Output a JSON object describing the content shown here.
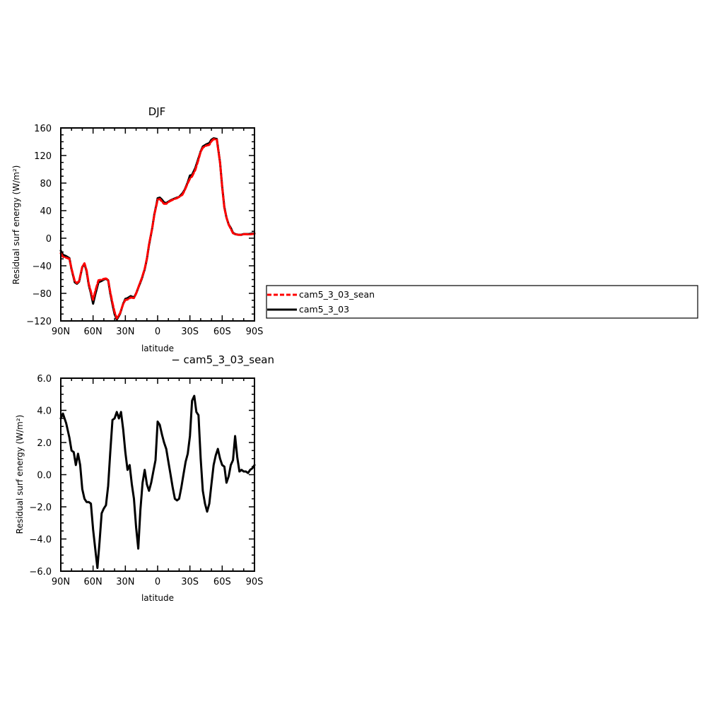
{
  "chart_data": [
    {
      "type": "line",
      "title": "DJF",
      "xlabel": "latitude",
      "ylabel": "Residual surf energy (W/m²)",
      "xlim": [
        90,
        -90
      ],
      "ylim": [
        -120,
        160
      ],
      "xticks": [
        90,
        60,
        30,
        0,
        -30,
        -60,
        -90
      ],
      "xtick_labels": [
        "90N",
        "60N",
        "30N",
        "0",
        "30S",
        "60S",
        "90S"
      ],
      "yticks": [
        -120,
        -80,
        -40,
        0,
        40,
        80,
        120,
        160
      ],
      "ytick_labels": [
        "−120",
        "−80",
        "−40",
        "0",
        "40",
        "80",
        "120",
        "160"
      ],
      "grid": false,
      "series": [
        {
          "name": "cam5_3_03",
          "color": "#000000",
          "dash": "solid",
          "x": [
            90,
            88,
            85,
            82,
            80,
            77,
            75,
            73,
            70,
            68,
            66,
            64,
            62,
            60,
            58,
            55,
            52,
            50,
            48,
            46,
            44,
            42,
            40,
            38,
            35,
            32,
            30,
            28,
            25,
            22,
            20,
            17,
            15,
            12,
            10,
            8,
            5,
            3,
            1,
            0,
            -2,
            -4,
            -6,
            -8,
            -10,
            -12,
            -15,
            -18,
            -20,
            -23,
            -25,
            -28,
            -30,
            -32,
            -35,
            -38,
            -40,
            -42,
            -45,
            -48,
            -50,
            -52,
            -55,
            -58,
            -60,
            -62,
            -64,
            -66,
            -68,
            -70,
            -72,
            -75,
            -78,
            -80,
            -82,
            -85,
            -88,
            -90
          ],
          "y": [
            -18,
            -24,
            -26,
            -29,
            -45,
            -64,
            -66,
            -63,
            -42,
            -37,
            -48,
            -68,
            -80,
            -95,
            -82,
            -64,
            -62,
            -60,
            -59,
            -61,
            -80,
            -96,
            -110,
            -118,
            -110,
            -95,
            -88,
            -87,
            -84,
            -86,
            -80,
            -68,
            -60,
            -45,
            -30,
            -10,
            15,
            35,
            50,
            58,
            59,
            56,
            52,
            51,
            53,
            55,
            57,
            59,
            60,
            65,
            70,
            81,
            91,
            92,
            102,
            116,
            126,
            133,
            136,
            138,
            143,
            145,
            144,
            110,
            75,
            45,
            30,
            20,
            15,
            8,
            6,
            5,
            5,
            6,
            6,
            6,
            7,
            7
          ]
        },
        {
          "name": "cam5_3_03_sean",
          "color": "#ff0000",
          "dash": "dashed",
          "x": [
            90,
            88,
            85,
            82,
            80,
            77,
            75,
            73,
            70,
            68,
            66,
            64,
            62,
            60,
            58,
            55,
            52,
            50,
            48,
            46,
            44,
            42,
            40,
            38,
            35,
            32,
            30,
            28,
            25,
            22,
            20,
            17,
            15,
            12,
            10,
            8,
            5,
            3,
            1,
            0,
            -2,
            -4,
            -6,
            -8,
            -10,
            -12,
            -15,
            -18,
            -20,
            -23,
            -25,
            -28,
            -30,
            -32,
            -35,
            -38,
            -40,
            -42,
            -45,
            -48,
            -50,
            -52,
            -55,
            -58,
            -60,
            -62,
            -64,
            -66,
            -68,
            -70,
            -72,
            -75,
            -78,
            -80,
            -82,
            -85,
            -88,
            -90
          ],
          "y": [
            -21.8,
            -26.8,
            -28.2,
            -30,
            -44.2,
            -62.4,
            -65,
            -62.2,
            -41.4,
            -36.4,
            -46.6,
            -66.4,
            -77.6,
            -89.2,
            -76.8,
            -61,
            -60.3,
            -59,
            -58.5,
            -60.4,
            -78.2,
            -93.6,
            -107,
            -116.3,
            -109.2,
            -95.3,
            -89.6,
            -89,
            -86,
            -86.8,
            -80.2,
            -67.3,
            -59.1,
            -44.4,
            -29.4,
            -9,
            14.8,
            34.4,
            48.7,
            56,
            56.9,
            53.1,
            49.9,
            49.9,
            52.4,
            54.3,
            56.5,
            58.2,
            59.9,
            63.1,
            69.1,
            79.9,
            86.5,
            89.6,
            99.2,
            114,
            125.5,
            131.3,
            134.3,
            135.5,
            140.6,
            143.8,
            143.1,
            109.7,
            74.3,
            44,
            30.1,
            19.7,
            13.6,
            7.3,
            5.8,
            5,
            4.8,
            5.8,
            5.9,
            5.5,
            6.1,
            6.6
          ]
        }
      ],
      "legend": {
        "position": "right",
        "entries": [
          {
            "label": "cam5_3_03_sean",
            "color": "#ff0000",
            "dash": "dashed"
          },
          {
            "label": "cam5_3_03",
            "color": "#000000",
            "dash": "solid"
          }
        ]
      }
    },
    {
      "type": "line",
      "title": "− cam5_3_03_sean",
      "xlabel": "latitude",
      "ylabel": "Residual surf energy (W/m²)",
      "xlim": [
        90,
        -90
      ],
      "ylim": [
        -6.0,
        6.0
      ],
      "xticks": [
        90,
        60,
        30,
        0,
        -30,
        -60,
        -90
      ],
      "xtick_labels": [
        "90N",
        "60N",
        "30N",
        "0",
        "30S",
        "60S",
        "90S"
      ],
      "yticks": [
        -6.0,
        -4.0,
        -2.0,
        0.0,
        2.0,
        4.0,
        6.0
      ],
      "ytick_labels": [
        "−6.0",
        "−4.0",
        "−2.0",
        "0.0",
        "2.0",
        "4.0",
        "6.0"
      ],
      "grid": false,
      "series": [
        {
          "name": "",
          "color": "#000000",
          "dash": "solid",
          "x": [
            90,
            88,
            85,
            82,
            80,
            78,
            76,
            74,
            72,
            70,
            68,
            66,
            64,
            62,
            60,
            58,
            56,
            54,
            52,
            50,
            48,
            46,
            44,
            42,
            40,
            38,
            36,
            34,
            32,
            30,
            28,
            26,
            24,
            22,
            20,
            18,
            16,
            14,
            12,
            10,
            8,
            6,
            4,
            2,
            0,
            -2,
            -4,
            -6,
            -8,
            -10,
            -12,
            -14,
            -16,
            -18,
            -20,
            -22,
            -24,
            -26,
            -28,
            -30,
            -32,
            -34,
            -36,
            -38,
            -40,
            -42,
            -44,
            -46,
            -48,
            -50,
            -52,
            -54,
            -56,
            -58,
            -60,
            -62,
            -64,
            -66,
            -68,
            -70,
            -72,
            -74,
            -76,
            -78,
            -80,
            -82,
            -84,
            -86,
            -88,
            -90
          ],
          "y": [
            3.5,
            3.8,
            3.2,
            2.3,
            1.5,
            1.4,
            0.6,
            1.3,
            0.6,
            -0.9,
            -1.5,
            -1.7,
            -1.7,
            -1.8,
            -3.4,
            -4.6,
            -5.8,
            -4.2,
            -2.4,
            -2.1,
            -1.9,
            -0.7,
            1.4,
            3.4,
            3.5,
            3.9,
            3.5,
            3.9,
            2.8,
            1.4,
            0.3,
            0.6,
            -0.6,
            -1.5,
            -3.3,
            -4.6,
            -2.2,
            -0.5,
            0.3,
            -0.6,
            -1.0,
            -0.5,
            0.2,
            0.9,
            3.3,
            3.1,
            2.5,
            2.0,
            1.6,
            0.8,
            0.0,
            -0.8,
            -1.5,
            -1.6,
            -1.5,
            -0.8,
            0.0,
            0.8,
            1.3,
            2.4,
            4.6,
            4.9,
            3.9,
            3.7,
            1.0,
            -1.0,
            -1.8,
            -2.3,
            -1.8,
            -0.6,
            0.6,
            1.2,
            1.6,
            1.0,
            0.6,
            0.5,
            -0.5,
            -0.1,
            0.6,
            0.9,
            2.4,
            1.1,
            0.2,
            0.3,
            0.2,
            0.2,
            0.1,
            0.3,
            0.4,
            0.6
          ]
        }
      ]
    }
  ]
}
